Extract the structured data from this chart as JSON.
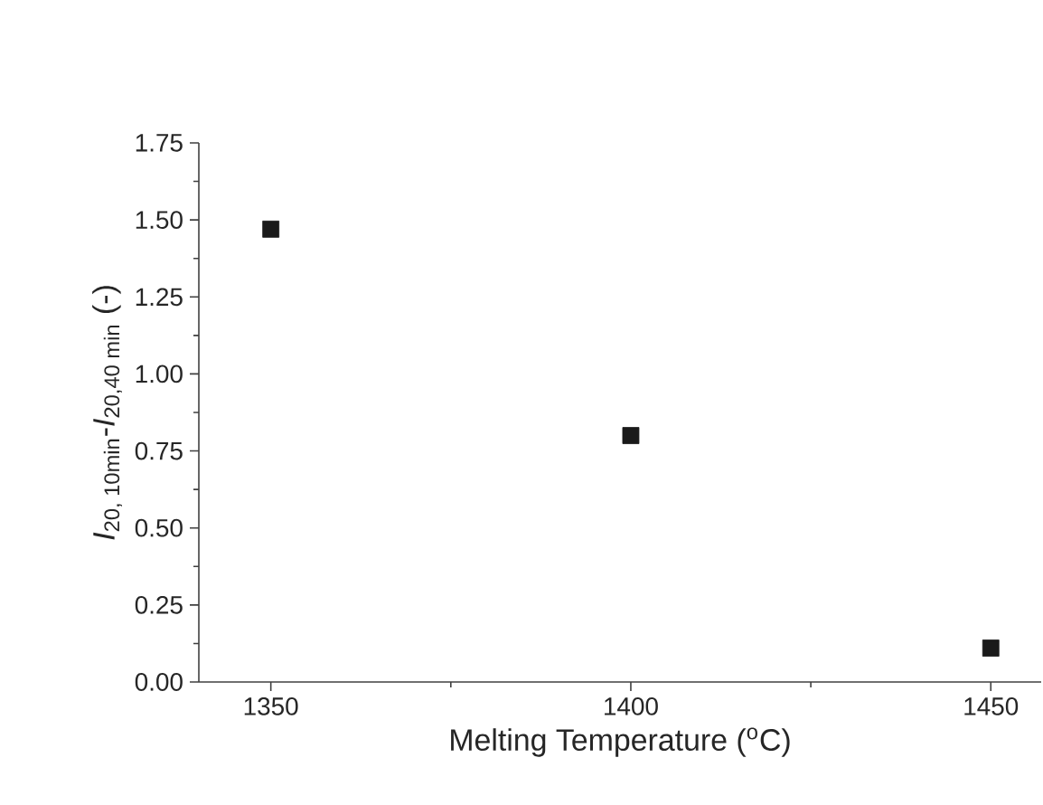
{
  "chart_data": {
    "type": "scatter",
    "xlabel": "Melting Temperature ($^{o}$C)",
    "ylabel": "*I*$_{20, 10min}$-*I*$_{20,40 min}$ (-)",
    "x": [
      1350,
      1400,
      1450
    ],
    "values": [
      1.47,
      0.8,
      0.11
    ],
    "color": "#1a1a1a",
    "marker": "square",
    "xlim": [
      1340,
      1457
    ],
    "xticks": [
      1350,
      1400,
      1450
    ],
    "ylim": [
      0,
      1.75
    ],
    "yticks": [
      {
        "value": 0,
        "label": "0.00"
      },
      {
        "value": 0.25,
        "label": "0.25"
      },
      {
        "value": 0.5,
        "label": "0.50"
      },
      {
        "value": 0.75,
        "label": "0.75"
      },
      {
        "value": 1,
        "label": "1.00"
      },
      {
        "value": 1.25,
        "label": "1.25"
      },
      {
        "value": 1.5,
        "label": "1.50"
      },
      {
        "value": 1.75,
        "label": "1.75"
      }
    ],
    "grid": false
  }
}
